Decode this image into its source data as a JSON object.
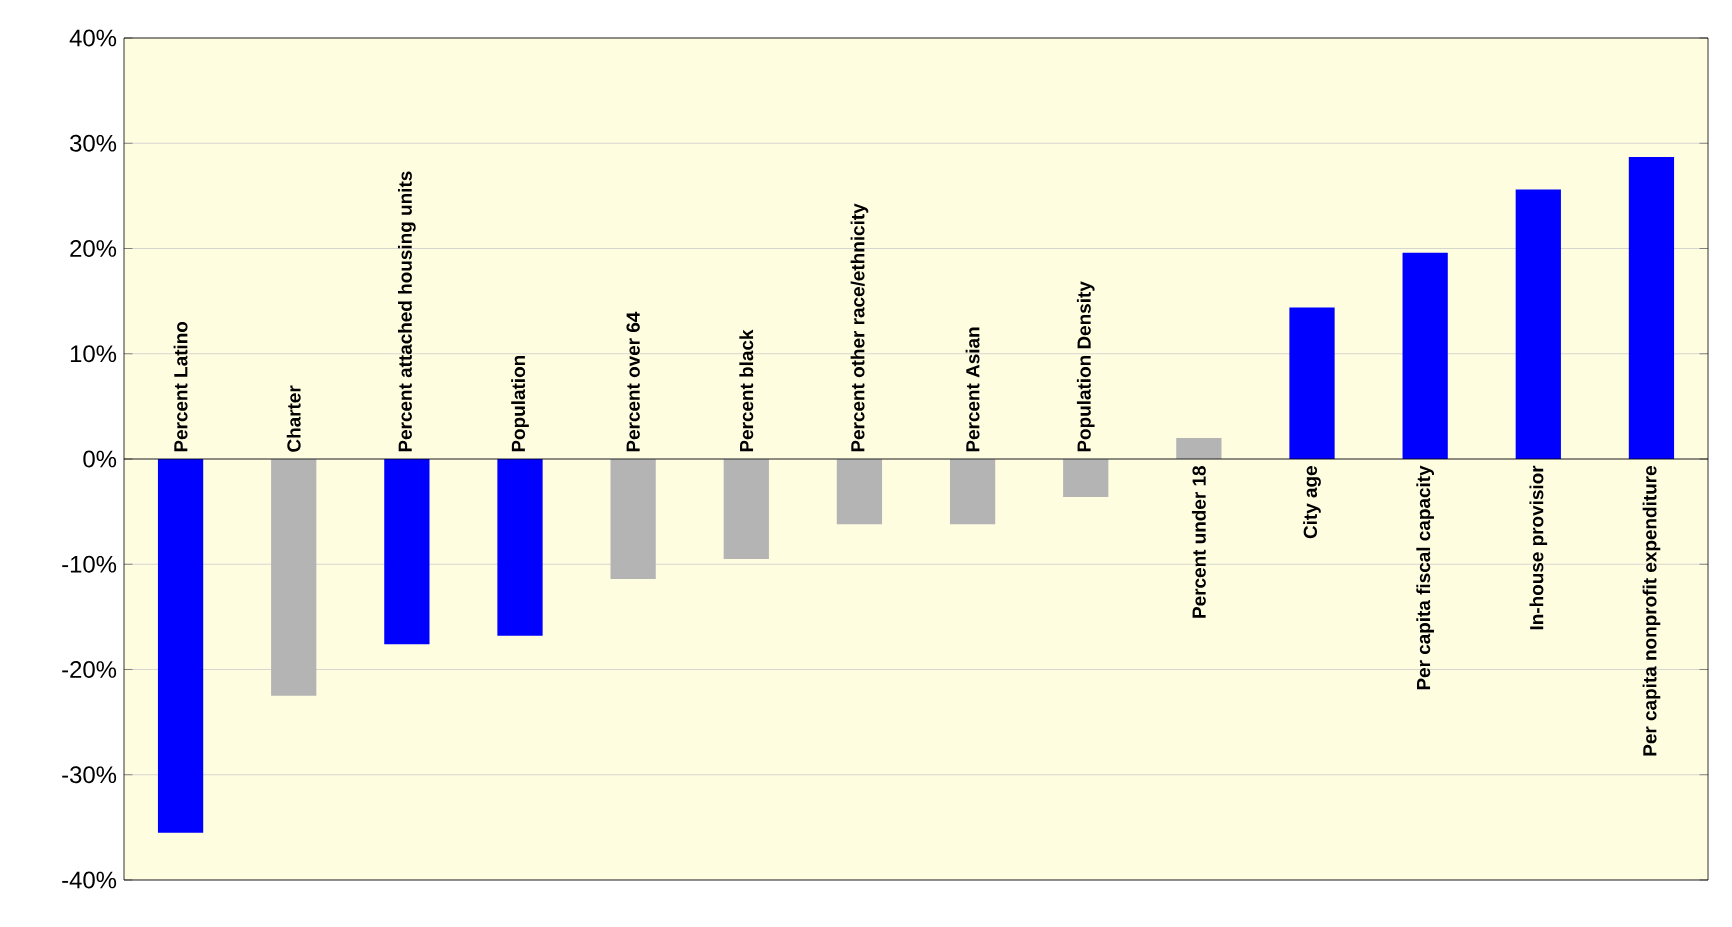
{
  "chart_data": {
    "type": "bar",
    "categories": [
      "Percent Latino",
      "Charter",
      "Percent attached housing units",
      "Population",
      "Percent over 64",
      "Percent black",
      "Percent other race/ethnicity",
      "Percent Asian",
      "Population Density",
      "Percent under 18",
      "City age",
      "Per capita fiscal capacity",
      "In-house provisior",
      "Per capita nonprofit expenditure"
    ],
    "values": [
      -35.5,
      -22.5,
      -17.6,
      -16.8,
      -11.4,
      -9.5,
      -6.2,
      -6.2,
      -3.6,
      2.0,
      14.4,
      19.6,
      25.6,
      28.7
    ],
    "colors": [
      "#0000ff",
      "#b4b4b4",
      "#0000ff",
      "#0000ff",
      "#b4b4b4",
      "#b4b4b4",
      "#b4b4b4",
      "#b4b4b4",
      "#b4b4b4",
      "#b4b4b4",
      "#0000ff",
      "#0000ff",
      "#0000ff",
      "#0000ff"
    ],
    "ylim": [
      -40,
      40
    ],
    "yticks": [
      {
        "value": -40,
        "label": "-40%"
      },
      {
        "value": -30,
        "label": "-30%"
      },
      {
        "value": -20,
        "label": "-20%"
      },
      {
        "value": -10,
        "label": "-10%"
      },
      {
        "value": 0,
        "label": "0%"
      },
      {
        "value": 10,
        "label": "10%"
      },
      {
        "value": 20,
        "label": "20%"
      },
      {
        "value": 30,
        "label": "30%"
      },
      {
        "value": 40,
        "label": "40%"
      }
    ],
    "grid": "y",
    "tick_labels": "y"
  }
}
